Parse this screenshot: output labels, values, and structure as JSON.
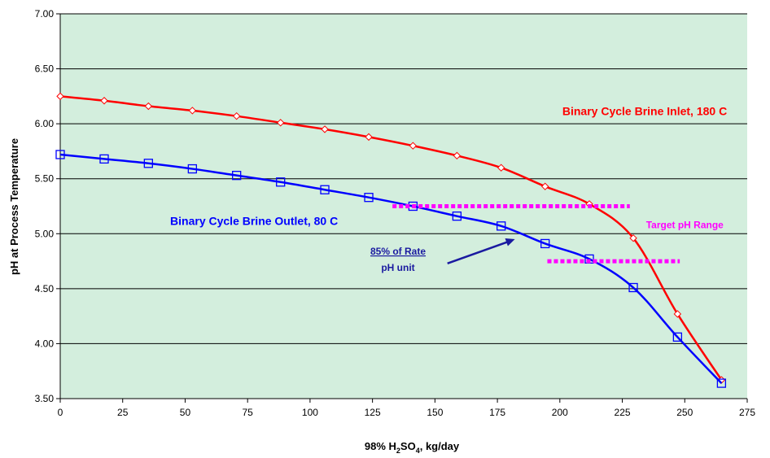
{
  "chart_data": {
    "type": "line",
    "title": "",
    "xlabel": "98% H2SO4, kg/day",
    "xlabel_parts": {
      "pre": "98% H",
      "sub1": "2",
      "mid": "SO",
      "sub2": "4",
      "post": ", kg/day"
    },
    "ylabel": "pH at Process Temperature",
    "xlim": [
      0,
      275
    ],
    "ylim": [
      3.5,
      7.0
    ],
    "x_ticks": [
      "0",
      "25",
      "50",
      "75",
      "100",
      "125",
      "150",
      "175",
      "200",
      "225",
      "250",
      "275"
    ],
    "y_ticks": [
      "3.50",
      "4.00",
      "4.50",
      "5.00",
      "5.50",
      "6.00",
      "6.50",
      "7.00"
    ],
    "grid": "horizontal",
    "background_color": "#d3eedd",
    "series": [
      {
        "name": "Binary Cycle Brine Inlet, 180 C",
        "color": "#ff0000",
        "marker": "diamond",
        "x": [
          0,
          17.6,
          35.3,
          52.9,
          70.6,
          88.2,
          105.9,
          123.5,
          141.2,
          158.8,
          176.5,
          194.1,
          211.8,
          229.4,
          247.1,
          264.7
        ],
        "y": [
          6.25,
          6.21,
          6.16,
          6.12,
          6.07,
          6.01,
          5.95,
          5.88,
          5.8,
          5.71,
          5.6,
          5.43,
          5.27,
          4.96,
          4.27,
          3.67
        ]
      },
      {
        "name": "Binary Cycle Brine Outlet, 80 C",
        "color": "#0000ff",
        "marker": "square",
        "x": [
          0,
          17.6,
          35.3,
          52.9,
          70.6,
          88.2,
          105.9,
          123.5,
          141.2,
          158.8,
          176.5,
          194.1,
          211.8,
          229.4,
          247.1,
          264.7
        ],
        "y": [
          5.72,
          5.68,
          5.64,
          5.59,
          5.53,
          5.47,
          5.4,
          5.33,
          5.25,
          5.16,
          5.07,
          4.91,
          4.77,
          4.51,
          4.06,
          3.64
        ]
      }
    ],
    "target_range": {
      "label": "Target pH Range",
      "color": "#ff00ff",
      "upper": {
        "x": [
          133,
          228
        ],
        "y": 5.25
      },
      "lower": {
        "x": [
          195,
          248
        ],
        "y": 4.75
      }
    },
    "annotation": {
      "line1": "85% of Rate",
      "line2": "pH unit",
      "color": "#1a1aa0",
      "arrow_from": {
        "x": 155,
        "y": 4.73
      },
      "arrow_to": {
        "x": 182,
        "y": 4.95
      }
    },
    "series_labels": [
      {
        "series": 0,
        "x": 201,
        "y": 6.08
      },
      {
        "series": 1,
        "x": 44,
        "y": 5.08
      }
    ],
    "range_label_position": {
      "x": 250,
      "y": 5.08
    }
  }
}
